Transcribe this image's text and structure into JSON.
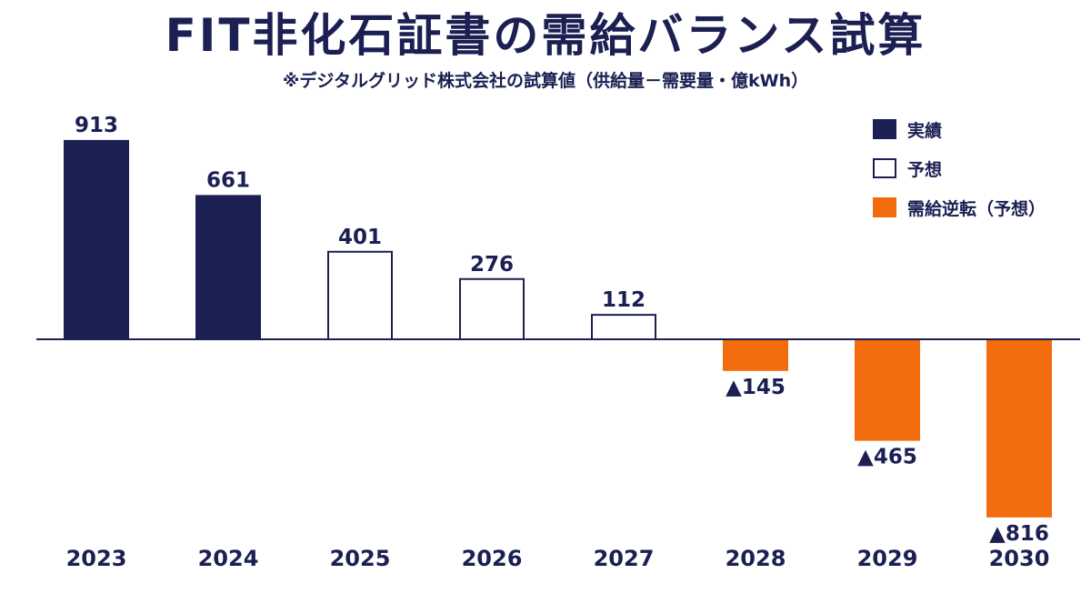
{
  "title": "FIT非化石証書の需給バランス試算",
  "subtitle": "※デジタルグリッド株式会社の試算値（供給量－需要量・億kWh）",
  "legend": [
    {
      "label": "実績",
      "style": "actual"
    },
    {
      "label": "予想",
      "style": "forecast"
    },
    {
      "label": "需給逆転（予想）",
      "style": "reversal"
    }
  ],
  "colors": {
    "actual": "#1b1f52",
    "forecast": "#ffffff",
    "reversal": "#f26c0d",
    "axis": "#1b1f52"
  },
  "chart_data": {
    "type": "bar",
    "categories": [
      "2023",
      "2024",
      "2025",
      "2026",
      "2027",
      "2028",
      "2029",
      "2030"
    ],
    "values": [
      913,
      661,
      401,
      276,
      112,
      -145,
      -465,
      -816
    ],
    "labels": [
      "913",
      "661",
      "401",
      "276",
      "112",
      "▲145",
      "▲465",
      "▲816"
    ],
    "styles": [
      "actual",
      "actual",
      "forecast",
      "forecast",
      "forecast",
      "reversal",
      "reversal",
      "reversal"
    ],
    "title": "FIT非化石証書の需給バランス試算",
    "ylabel": "",
    "xlabel": ""
  }
}
